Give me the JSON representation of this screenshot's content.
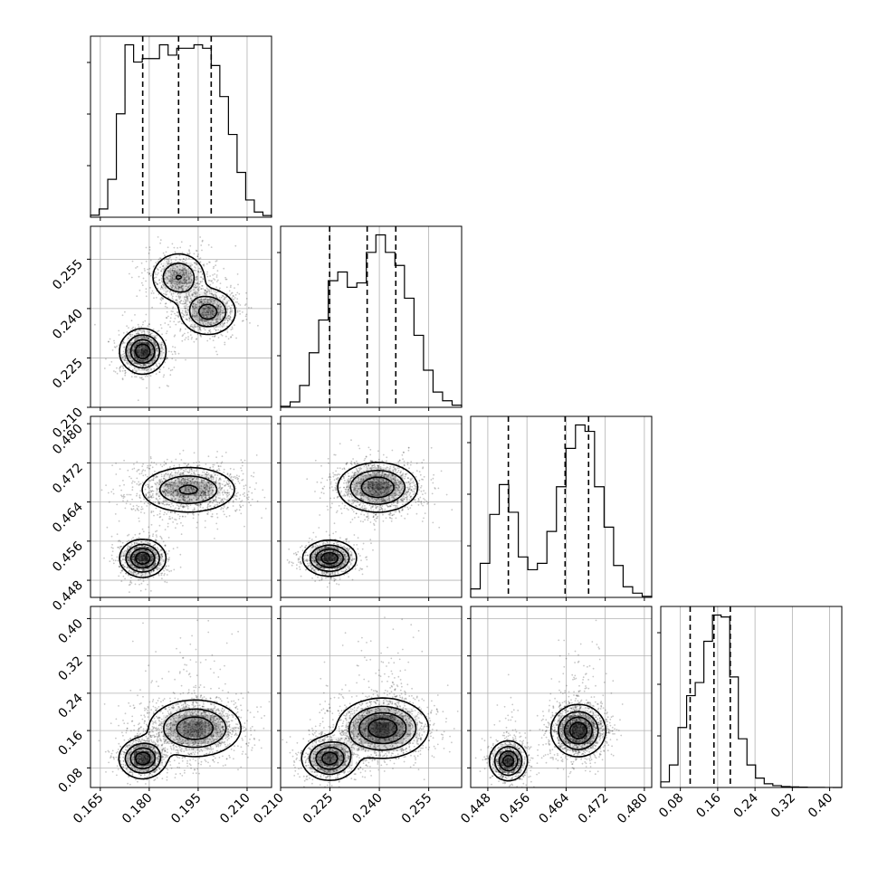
{
  "chart_data": {
    "type": "corner",
    "parameters": [
      {
        "range": [
          0.162,
          0.2175
        ],
        "ticks": [
          "0.165",
          "0.180",
          "0.195",
          "0.210"
        ],
        "quantiles": [
          0.178,
          0.189,
          0.199
        ],
        "hist_values": [
          0.6,
          2.4,
          11,
          30,
          50,
          45,
          46,
          46,
          50,
          47,
          49,
          49,
          50,
          49,
          44,
          35,
          24,
          13,
          5,
          1.5,
          0.5
        ]
      },
      {
        "range": [
          0.21,
          0.265
        ],
        "ticks": [
          "0.210",
          "0.225",
          "0.240",
          "0.255"
        ],
        "quantiles": [
          0.2249,
          0.2363,
          0.245
        ],
        "hist_values": [
          0.5,
          2.5,
          10,
          25,
          40,
          58,
          62,
          55,
          57,
          71,
          79,
          71,
          65,
          50,
          33,
          17,
          7,
          3,
          1
        ]
      },
      {
        "range": [
          0.4445,
          0.4815
        ],
        "ticks": [
          "0.448",
          "0.456",
          "0.464",
          "0.472",
          "0.480"
        ],
        "quantiles": [
          0.4522,
          0.4638,
          0.4686
        ],
        "hist_values": [
          4,
          16,
          39,
          53,
          40,
          19,
          13,
          16,
          31,
          52,
          70,
          81,
          78,
          52,
          33,
          15,
          5,
          2,
          0.5
        ]
      },
      {
        "range": [
          0.038,
          0.426
        ],
        "ticks": [
          "0.08",
          "0.16",
          "0.24",
          "0.32",
          "0.40"
        ],
        "quantiles": [
          0.101,
          0.152,
          0.187
        ],
        "hist_values": [
          3,
          12,
          32,
          49,
          56,
          78,
          92,
          91,
          59,
          26,
          12,
          5,
          2,
          1,
          0.5,
          0.3,
          0.2,
          0.1,
          0.05,
          0.02,
          0
        ]
      }
    ],
    "pair_modes": {
      "1_0": [
        {
          "x": 0.178,
          "y": 0.227,
          "sx": 0.0033,
          "sy": 0.0032,
          "w": 0.36
        },
        {
          "x": 0.189,
          "y": 0.2495,
          "sx": 0.0042,
          "sy": 0.0038,
          "w": 0.3
        },
        {
          "x": 0.198,
          "y": 0.239,
          "sx": 0.0043,
          "sy": 0.0035,
          "w": 0.34
        }
      ],
      "2_0": [
        {
          "x": 0.178,
          "y": 0.4525,
          "sx": 0.0033,
          "sy": 0.0018,
          "w": 0.36
        },
        {
          "x": 0.192,
          "y": 0.4665,
          "sx": 0.0075,
          "sy": 0.0024,
          "w": 0.64
        }
      ],
      "2_1": [
        {
          "x": 0.2249,
          "y": 0.4525,
          "sx": 0.0038,
          "sy": 0.0017,
          "w": 0.36
        },
        {
          "x": 0.2395,
          "y": 0.467,
          "sx": 0.006,
          "sy": 0.0025,
          "w": 0.64
        }
      ],
      "3_0": [
        {
          "x": 0.178,
          "y": 0.1,
          "sx": 0.0034,
          "sy": 0.02,
          "w": 0.3
        },
        {
          "x": 0.194,
          "y": 0.165,
          "sx": 0.007,
          "sy": 0.03,
          "w": 0.7
        }
      ],
      "3_1": [
        {
          "x": 0.2249,
          "y": 0.1,
          "sx": 0.004,
          "sy": 0.022,
          "w": 0.3
        },
        {
          "x": 0.241,
          "y": 0.165,
          "sx": 0.0065,
          "sy": 0.03,
          "w": 0.7
        }
      ],
      "3_2": [
        {
          "x": 0.4522,
          "y": 0.095,
          "sx": 0.0018,
          "sy": 0.02,
          "w": 0.34
        },
        {
          "x": 0.4665,
          "y": 0.16,
          "sx": 0.0026,
          "sy": 0.026,
          "w": 0.66
        }
      ]
    },
    "grid": true,
    "colors": {
      "line": "#000000",
      "grid": "#b0b0b0",
      "points": "#000000",
      "density": "#000000"
    }
  }
}
